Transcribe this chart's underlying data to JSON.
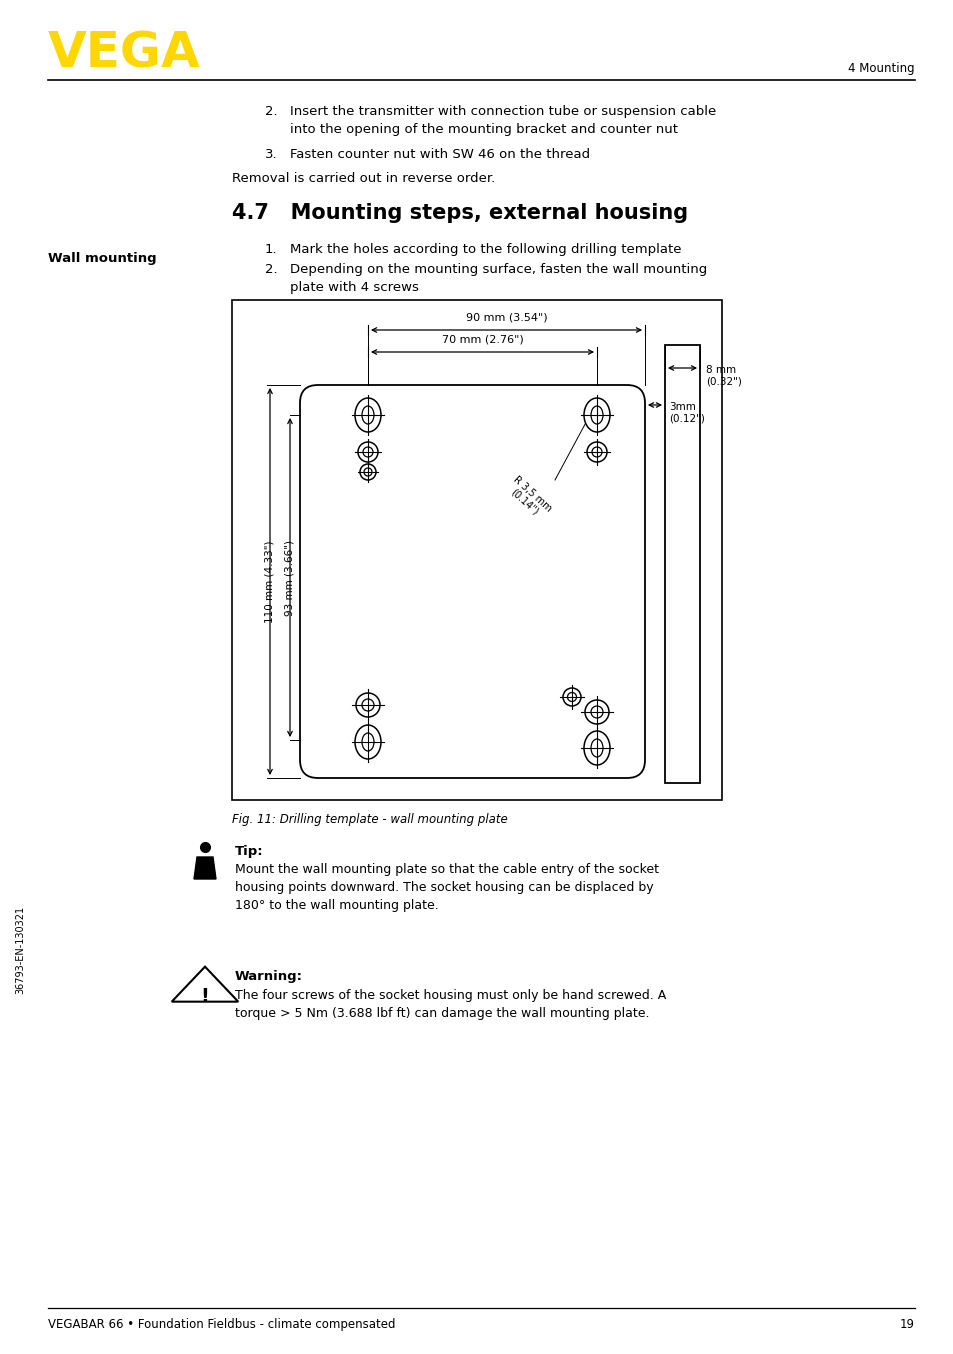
{
  "page_bg": "#ffffff",
  "logo_color": "#FFD700",
  "header_text": "4 Mounting",
  "footer_text": "VEGABAR 66 • Foundation Fieldbus - climate compensated",
  "footer_page": "19",
  "side_text": "36793-EN-130321",
  "section_title": "4.7   Mounting steps, external housing",
  "wall_mounting_label": "Wall mounting",
  "removal_text": "Removal is carried out in reverse order.",
  "fig_caption": "Fig. 11: Drilling template - wall mounting plate",
  "tip_title": "Tip:",
  "tip_text": "Mount the wall mounting plate so that the cable entry of the socket\nhousing points downward. The socket housing can be displaced by\n180° to the wall mounting plate.",
  "warning_title": "Warning:",
  "warning_text": "The four screws of the socket housing must only be hand screwed. A\ntorque > 5 Nm (3.688 lbf ft) can damage the wall mounting plate.",
  "dim_90": "90 mm (3.54\")",
  "dim_70": "70 mm (2.76\")",
  "dim_3mm": "3mm\n(0.12\")",
  "dim_8mm": "8 mm\n(0.32\")",
  "dim_110": "110 mm (4.33\")",
  "dim_93": "93 mm (3.66\")",
  "dim_r35": "R 3,5 mm\n(0.14\")"
}
